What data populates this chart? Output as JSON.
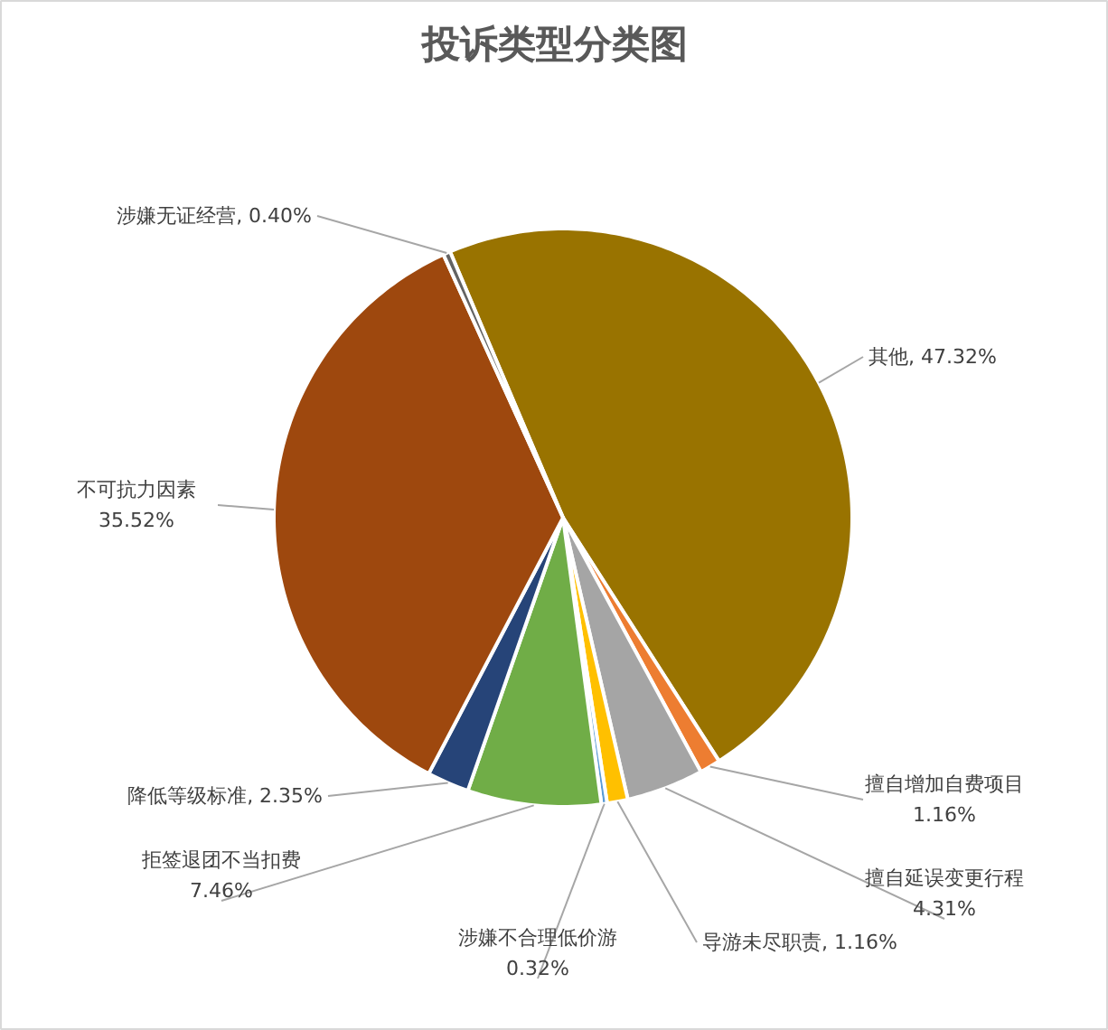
{
  "chart_data": {
    "type": "pie",
    "title": "投诉类型分类图",
    "categories": [
      "其他",
      "擅自增加自费项目",
      "擅自延误变更行程",
      "导游未尽职责",
      "涉嫌不合理低价游",
      "拒签退团不当扣费",
      "降低等级标准",
      "不可抗力因素",
      "涉嫌无证经营"
    ],
    "values": [
      47.32,
      1.16,
      4.31,
      1.16,
      0.32,
      7.46,
      2.35,
      35.52,
      0.4
    ],
    "colors": [
      "#997300",
      "#ed7d31",
      "#a5a5a5",
      "#ffc000",
      "#5b9bd5",
      "#70ad47",
      "#264478",
      "#9e480e",
      "#636363"
    ],
    "value_labels": [
      "47.32%",
      "1.16%",
      "4.31%",
      "1.16%",
      "0.32%",
      "7.46%",
      "2.35%",
      "35.52%",
      "0.40%"
    ]
  }
}
